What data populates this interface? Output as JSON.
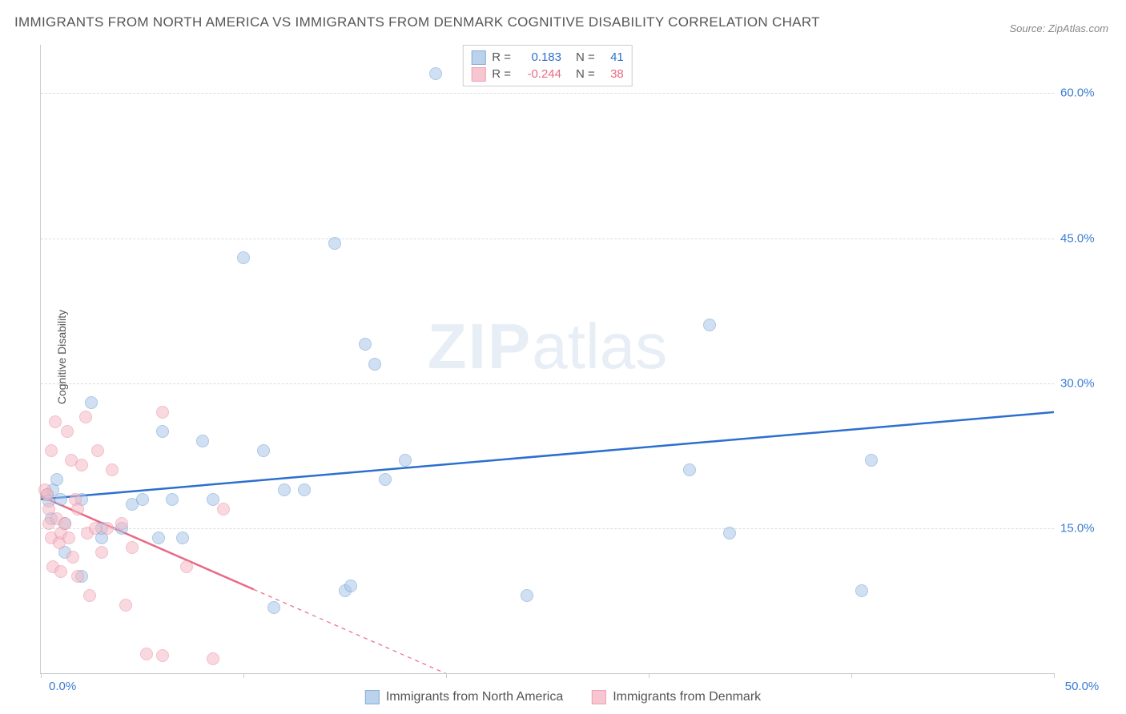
{
  "title": "IMMIGRANTS FROM NORTH AMERICA VS IMMIGRANTS FROM DENMARK COGNITIVE DISABILITY CORRELATION CHART",
  "source_label": "Source: ZipAtlas.com",
  "ylabel": "Cognitive Disability",
  "watermark_zip": "ZIP",
  "watermark_atlas": "atlas",
  "chart": {
    "type": "scatter",
    "xlim": [
      0,
      50
    ],
    "ylim": [
      0,
      65
    ],
    "x_ticks": [
      0,
      10,
      20,
      30,
      40,
      50
    ],
    "x_tick_labels": [
      "0.0%",
      "",
      "",
      "",
      "",
      "50.0%"
    ],
    "y_ticks": [
      15,
      30,
      45,
      60
    ],
    "y_tick_labels": [
      "15.0%",
      "30.0%",
      "45.0%",
      "60.0%"
    ],
    "x_tick_label_color": "#3a7bd5",
    "y_tick_label_color": "#3a7bd5",
    "grid_color": "#dddddd",
    "axis_color": "#cccccc",
    "background_color": "#ffffff",
    "point_radius": 8,
    "series": [
      {
        "name": "Immigrants from North America",
        "fill_color": "#aac7e8",
        "stroke_color": "#6a9bd1",
        "fill_opacity": 0.55,
        "trend_color": "#2c6fcf",
        "trend_width": 2.5,
        "trend": {
          "x1": 0,
          "y1": 18.0,
          "x2": 50,
          "y2": 27.0
        },
        "R": "0.183",
        "N": "41",
        "points": [
          [
            0.3,
            18.5
          ],
          [
            0.4,
            17.8
          ],
          [
            0.6,
            19.0
          ],
          [
            0.5,
            16.0
          ],
          [
            0.8,
            20.0
          ],
          [
            1.0,
            18.0
          ],
          [
            1.2,
            15.5
          ],
          [
            1.2,
            12.5
          ],
          [
            2.0,
            18.0
          ],
          [
            2.0,
            10.0
          ],
          [
            2.5,
            28.0
          ],
          [
            3.0,
            14.0
          ],
          [
            3.0,
            15.0
          ],
          [
            4.0,
            15.0
          ],
          [
            4.5,
            17.5
          ],
          [
            5.0,
            18.0
          ],
          [
            5.8,
            14.0
          ],
          [
            6.0,
            25.0
          ],
          [
            6.5,
            18.0
          ],
          [
            7.0,
            14.0
          ],
          [
            8.0,
            24.0
          ],
          [
            8.5,
            18.0
          ],
          [
            10.0,
            43.0
          ],
          [
            11.0,
            23.0
          ],
          [
            11.5,
            6.8
          ],
          [
            12.0,
            19.0
          ],
          [
            13.0,
            19.0
          ],
          [
            14.5,
            44.5
          ],
          [
            15.0,
            8.5
          ],
          [
            15.3,
            9.0
          ],
          [
            16.0,
            34.0
          ],
          [
            16.5,
            32.0
          ],
          [
            17.0,
            20.0
          ],
          [
            18.0,
            22.0
          ],
          [
            19.5,
            62.0
          ],
          [
            24.0,
            8.0
          ],
          [
            32.0,
            21.0
          ],
          [
            33.0,
            36.0
          ],
          [
            34.0,
            14.5
          ],
          [
            40.5,
            8.5
          ],
          [
            41.0,
            22.0
          ]
        ]
      },
      {
        "name": "Immigrants from Denmark",
        "fill_color": "#f6b9c5",
        "stroke_color": "#e88ba0",
        "fill_opacity": 0.55,
        "trend_color": "#e86a86",
        "trend_width": 2.5,
        "trend_solid_until_x": 10.5,
        "trend": {
          "x1": 0,
          "y1": 18.3,
          "x2": 20.5,
          "y2": -0.5
        },
        "R": "-0.244",
        "N": "38",
        "points": [
          [
            0.2,
            19.0
          ],
          [
            0.3,
            18.5
          ],
          [
            0.4,
            15.5
          ],
          [
            0.4,
            17.0
          ],
          [
            0.5,
            23.0
          ],
          [
            0.5,
            14.0
          ],
          [
            0.6,
            11.0
          ],
          [
            0.7,
            26.0
          ],
          [
            0.8,
            16.0
          ],
          [
            0.9,
            13.5
          ],
          [
            1.0,
            10.5
          ],
          [
            1.0,
            14.5
          ],
          [
            1.2,
            15.5
          ],
          [
            1.3,
            25.0
          ],
          [
            1.4,
            14.0
          ],
          [
            1.5,
            22.0
          ],
          [
            1.6,
            12.0
          ],
          [
            1.7,
            18.0
          ],
          [
            1.8,
            17.0
          ],
          [
            1.8,
            10.0
          ],
          [
            2.0,
            21.5
          ],
          [
            2.2,
            26.5
          ],
          [
            2.3,
            14.5
          ],
          [
            2.4,
            8.0
          ],
          [
            2.7,
            15.0
          ],
          [
            2.8,
            23.0
          ],
          [
            3.0,
            12.5
          ],
          [
            3.3,
            15.0
          ],
          [
            3.5,
            21.0
          ],
          [
            4.0,
            15.5
          ],
          [
            4.2,
            7.0
          ],
          [
            4.5,
            13.0
          ],
          [
            5.2,
            2.0
          ],
          [
            6.0,
            27.0
          ],
          [
            6.0,
            1.8
          ],
          [
            7.2,
            11.0
          ],
          [
            8.5,
            1.5
          ],
          [
            9.0,
            17.0
          ]
        ]
      }
    ]
  },
  "stats_box": {
    "r_label": "R =",
    "n_label": "N ="
  },
  "bottom_legend": {
    "items": [
      {
        "label": "Immigrants from North America",
        "fill": "#aac7e8",
        "stroke": "#6a9bd1"
      },
      {
        "label": "Immigrants from Denmark",
        "fill": "#f6b9c5",
        "stroke": "#e88ba0"
      }
    ]
  }
}
